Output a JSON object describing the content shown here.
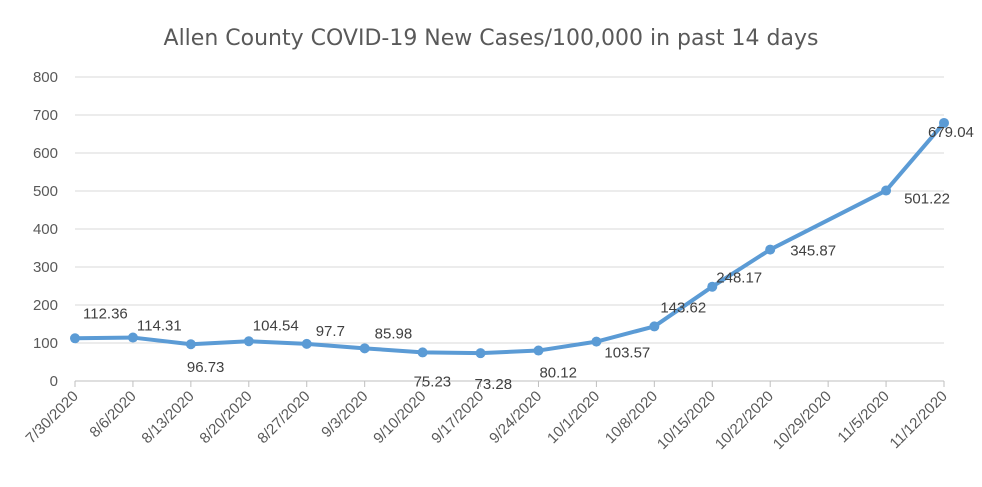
{
  "chart_data": {
    "type": "line",
    "title": "Allen County COVID-19 New Cases/100,000 in past 14 days",
    "xlabel": "",
    "ylabel": "",
    "ylim": [
      0,
      800
    ],
    "yticks": [
      0,
      100,
      200,
      300,
      400,
      500,
      600,
      700,
      800
    ],
    "ytick_labels": [
      "0",
      "100",
      "200",
      "300",
      "400",
      "500",
      "600",
      "700",
      "800"
    ],
    "grid": true,
    "legend": "none",
    "categories": [
      "7/30/2020",
      "8/6/2020",
      "8/13/2020",
      "8/20/2020",
      "8/27/2020",
      "9/3/2020",
      "9/10/2020",
      "9/17/2020",
      "9/24/2020",
      "10/1/2020",
      "10/8/2020",
      "10/15/2020",
      "10/22/2020",
      "10/29/2020",
      "11/5/2020",
      "11/12/2020"
    ],
    "series": [
      {
        "color": "#5b9bd5",
        "points": [
          {
            "x": "7/30/2020",
            "y": 112.36,
            "label": "112.36"
          },
          {
            "x": "8/6/2020",
            "y": 114.31,
            "label": "114.31"
          },
          {
            "x": "8/13/2020",
            "y": 96.73,
            "label": "96.73"
          },
          {
            "x": "8/20/2020",
            "y": 104.54,
            "label": "104.54"
          },
          {
            "x": "8/27/2020",
            "y": 97.7,
            "label": "97.7"
          },
          {
            "x": "9/3/2020",
            "y": 85.98,
            "label": "85.98"
          },
          {
            "x": "9/10/2020",
            "y": 75.23,
            "label": "75.23"
          },
          {
            "x": "9/17/2020",
            "y": 73.28,
            "label": "73.28"
          },
          {
            "x": "9/24/2020",
            "y": 80.12,
            "label": "80.12"
          },
          {
            "x": "10/1/2020",
            "y": 103.57,
            "label": "103.57"
          },
          {
            "x": "10/8/2020",
            "y": 143.62,
            "label": "143.62"
          },
          {
            "x": "10/15/2020",
            "y": 248.17,
            "label": "248.17"
          },
          {
            "x": "10/22/2020",
            "y": 345.87,
            "label": "345.87"
          },
          {
            "x": "11/5/2020",
            "y": 501.22,
            "label": "501.22"
          },
          {
            "x": "11/12/2020",
            "y": 679.04,
            "label": "679.04"
          }
        ]
      }
    ]
  }
}
